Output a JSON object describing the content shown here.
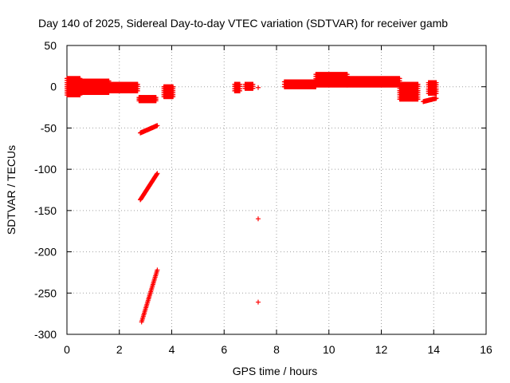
{
  "chart_data": {
    "type": "scatter",
    "title": "Day 140 of 2025, Sidereal Day-to-day VTEC variation (SDTVAR) for receiver gamb",
    "xlabel": "GPS time / hours",
    "ylabel": "SDTVAR / TECUs",
    "xlim": [
      0,
      16
    ],
    "ylim": [
      -300,
      50
    ],
    "xticks": [
      0,
      2,
      4,
      6,
      8,
      10,
      12,
      14,
      16
    ],
    "yticks": [
      50,
      0,
      -50,
      -100,
      -150,
      -200,
      -250,
      -300
    ],
    "grid": true,
    "marker": "+",
    "color": "#ff0000",
    "series": [
      {
        "name": "SDTVAR",
        "segments": [
          {
            "x0": 0.0,
            "x1": 0.5,
            "ylow": -10,
            "yhigh": 10,
            "shape": "band"
          },
          {
            "x0": 0.5,
            "x1": 1.6,
            "ylow": -7,
            "yhigh": 7,
            "shape": "band"
          },
          {
            "x0": 1.6,
            "x1": 2.7,
            "ylow": -5,
            "yhigh": 3,
            "shape": "band"
          },
          {
            "x0": 2.75,
            "x1": 3.4,
            "ylow": -17,
            "yhigh": -13,
            "shape": "band"
          },
          {
            "x0": 3.7,
            "x1": 4.05,
            "ylow": -12,
            "yhigh": 0,
            "shape": "band"
          },
          {
            "x0": 2.8,
            "x1": 3.45,
            "y0": -56,
            "y1": -47,
            "shape": "line"
          },
          {
            "x0": 2.8,
            "x1": 3.45,
            "y0": -137,
            "y1": -105,
            "shape": "line"
          },
          {
            "x0": 2.85,
            "x1": 3.45,
            "y0": -285,
            "y1": -222,
            "shape": "line"
          },
          {
            "x0": 6.4,
            "x1": 6.6,
            "ylow": -5,
            "yhigh": 3,
            "shape": "band"
          },
          {
            "x0": 6.8,
            "x1": 7.1,
            "ylow": -2,
            "yhigh": 3,
            "shape": "band"
          },
          {
            "x0": 8.3,
            "x1": 9.5,
            "ylow": 0,
            "yhigh": 6,
            "shape": "band"
          },
          {
            "x0": 9.5,
            "x1": 10.7,
            "ylow": 2,
            "yhigh": 15,
            "shape": "band"
          },
          {
            "x0": 10.7,
            "x1": 12.7,
            "ylow": 2,
            "yhigh": 10,
            "shape": "band"
          },
          {
            "x0": 12.7,
            "x1": 13.4,
            "ylow": -15,
            "yhigh": 3,
            "shape": "band"
          },
          {
            "x0": 13.8,
            "x1": 14.1,
            "ylow": -8,
            "yhigh": 5,
            "shape": "band"
          },
          {
            "x0": 13.6,
            "x1": 14.1,
            "y0": -18,
            "y1": -14,
            "shape": "line"
          }
        ],
        "points": [
          {
            "x": 7.3,
            "y": -1
          },
          {
            "x": 7.3,
            "y": -160
          },
          {
            "x": 7.3,
            "y": -261
          }
        ]
      }
    ]
  }
}
